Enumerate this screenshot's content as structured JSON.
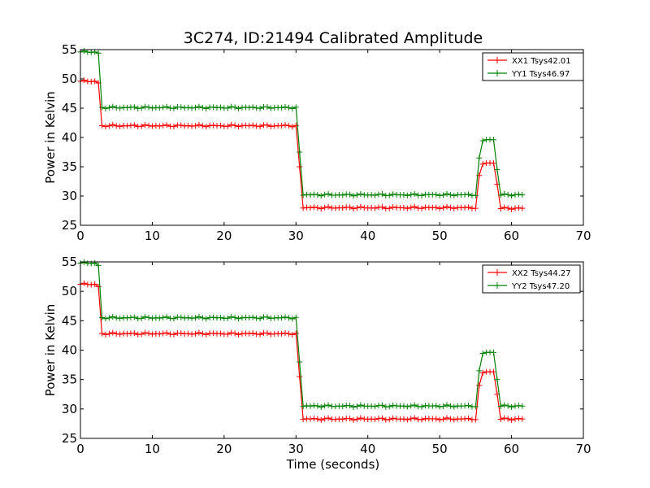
{
  "chart_data": {
    "type": "line",
    "title": "3C274, ID:21494 Calibrated Amplitude",
    "xlabel": "Time (seconds)",
    "xlim": [
      0,
      70
    ],
    "xticks": [
      0,
      10,
      20,
      30,
      40,
      50,
      60,
      70
    ],
    "legend_position": "top-right",
    "marker": "plus",
    "x_step": 0.5,
    "x_end": 61.5,
    "panels": [
      {
        "ylabel": "Power in Kelvin",
        "ylim": [
          25,
          55
        ],
        "yticks": [
          25,
          30,
          35,
          40,
          45,
          50,
          55
        ],
        "series": [
          {
            "name": "XX1 Tsys42.01",
            "color": "#ff0000",
            "segments": [
              {
                "from": 0,
                "to": 2.0,
                "value": 49.6
              },
              {
                "from": 2.5,
                "to": 2.5,
                "value": 49.3
              },
              {
                "from": 3.0,
                "to": 30.0,
                "value": 42.0
              },
              {
                "from": 30.5,
                "to": 30.5,
                "value": 35.0
              },
              {
                "from": 31.0,
                "to": 55.0,
                "value": 28.0
              },
              {
                "from": 55.5,
                "to": 55.5,
                "value": 33.5
              },
              {
                "from": 56.0,
                "to": 57.5,
                "value": 35.6
              },
              {
                "from": 58.0,
                "to": 58.0,
                "value": 32.0
              },
              {
                "from": 58.5,
                "to": 61.5,
                "value": 27.9
              }
            ]
          },
          {
            "name": "YY1 Tsys46.97",
            "color": "#008000",
            "segments": [
              {
                "from": 0,
                "to": 2.0,
                "value": 54.6
              },
              {
                "from": 2.5,
                "to": 2.5,
                "value": 54.4
              },
              {
                "from": 3.0,
                "to": 30.0,
                "value": 45.1
              },
              {
                "from": 30.5,
                "to": 30.5,
                "value": 37.5
              },
              {
                "from": 31.0,
                "to": 55.0,
                "value": 30.2
              },
              {
                "from": 55.5,
                "to": 55.5,
                "value": 36.5
              },
              {
                "from": 56.0,
                "to": 57.5,
                "value": 39.6
              },
              {
                "from": 58.0,
                "to": 58.0,
                "value": 34.5
              },
              {
                "from": 58.5,
                "to": 61.5,
                "value": 30.2
              }
            ]
          }
        ]
      },
      {
        "ylabel": "Power in Kelvin",
        "ylim": [
          25,
          55
        ],
        "yticks": [
          25,
          30,
          35,
          40,
          45,
          50,
          55
        ],
        "series": [
          {
            "name": "XX2 Tsys44.27",
            "color": "#ff0000",
            "segments": [
              {
                "from": 0,
                "to": 2.0,
                "value": 51.2
              },
              {
                "from": 2.5,
                "to": 2.5,
                "value": 50.8
              },
              {
                "from": 3.0,
                "to": 30.0,
                "value": 42.8
              },
              {
                "from": 30.5,
                "to": 30.5,
                "value": 35.5
              },
              {
                "from": 31.0,
                "to": 55.0,
                "value": 28.3
              },
              {
                "from": 55.5,
                "to": 55.5,
                "value": 34.0
              },
              {
                "from": 56.0,
                "to": 57.5,
                "value": 36.3
              },
              {
                "from": 58.0,
                "to": 58.0,
                "value": 32.5
              },
              {
                "from": 58.5,
                "to": 61.5,
                "value": 28.3
              }
            ]
          },
          {
            "name": "YY2 Tsys47.20",
            "color": "#008000",
            "segments": [
              {
                "from": 0,
                "to": 2.0,
                "value": 54.8
              },
              {
                "from": 2.5,
                "to": 2.5,
                "value": 54.4
              },
              {
                "from": 3.0,
                "to": 30.0,
                "value": 45.5
              },
              {
                "from": 30.5,
                "to": 30.5,
                "value": 38.0
              },
              {
                "from": 31.0,
                "to": 55.0,
                "value": 30.5
              },
              {
                "from": 55.5,
                "to": 55.5,
                "value": 36.5
              },
              {
                "from": 56.0,
                "to": 57.5,
                "value": 39.6
              },
              {
                "from": 58.0,
                "to": 58.0,
                "value": 35.0
              },
              {
                "from": 58.5,
                "to": 61.5,
                "value": 30.5
              }
            ]
          }
        ]
      }
    ]
  }
}
